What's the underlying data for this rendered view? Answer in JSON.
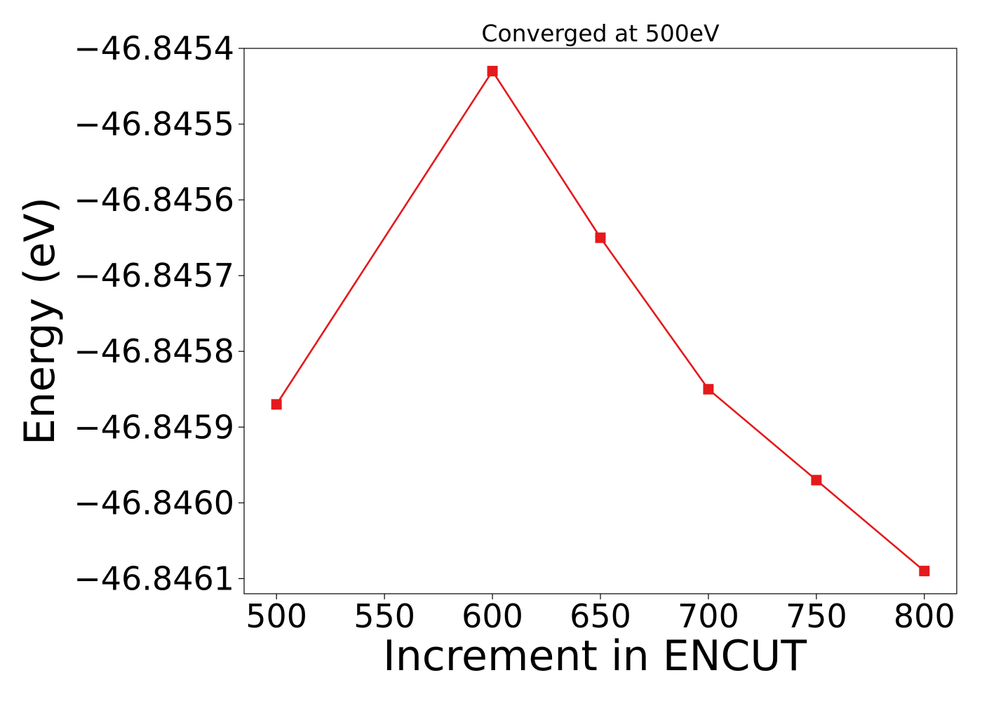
{
  "chart_data": {
    "type": "line",
    "title": "Converged at 500eV",
    "xlabel": "Increment in ENCUT",
    "ylabel": "Energy (eV)",
    "x": [
      500,
      600,
      650,
      700,
      750,
      800
    ],
    "series": [
      {
        "values": [
          -46.84587,
          -46.84543,
          -46.84565,
          -46.84585,
          -46.84597,
          -46.84609
        ],
        "color": "#e41a1c",
        "marker": "square"
      }
    ],
    "xticks": [
      500,
      550,
      600,
      650,
      700,
      750,
      800
    ],
    "xtick_labels": [
      "500",
      "550",
      "600",
      "650",
      700,
      "750",
      "800"
    ],
    "yticks": [
      -46.8454,
      -46.8455,
      -46.8456,
      -46.8457,
      -46.8458,
      -46.8459,
      -46.846,
      -46.8461
    ],
    "ytick_labels": [
      "−46.8454",
      "−46.8455",
      "−46.8456",
      "−46.8457",
      "−46.8458",
      "−46.8459",
      "−46.8460",
      "−46.8461"
    ],
    "xlim": [
      485,
      815
    ],
    "ylim": [
      -46.84612,
      -46.8454
    ],
    "grid": false,
    "legend": "none"
  }
}
